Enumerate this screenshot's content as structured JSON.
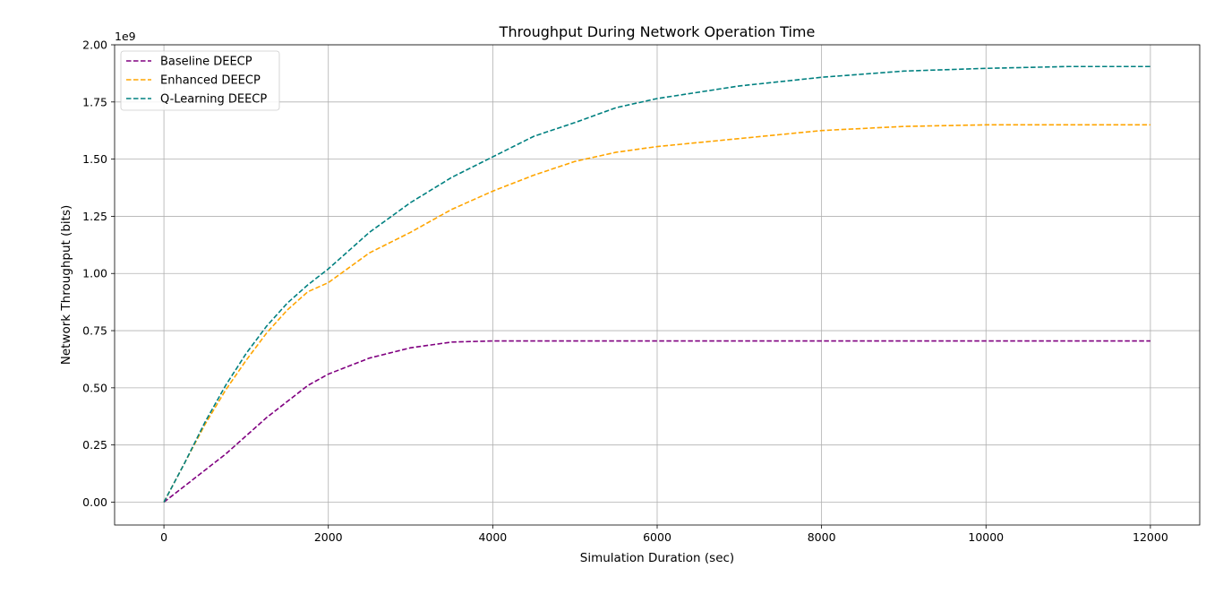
{
  "chart_data": {
    "type": "line",
    "title": "Throughput During Network Operation Time",
    "xlabel": "Simulation Duration (sec)",
    "ylabel": "Network Throughput (bits)",
    "y_offset_label": "1e9",
    "xlim": [
      -600,
      12600
    ],
    "ylim": [
      -0.1,
      2.0
    ],
    "xticks": [
      0,
      2000,
      4000,
      6000,
      8000,
      10000,
      12000
    ],
    "xtick_labels": [
      "0",
      "2000",
      "4000",
      "6000",
      "8000",
      "10000",
      "12000"
    ],
    "yticks": [
      0.0,
      0.25,
      0.5,
      0.75,
      1.0,
      1.25,
      1.5,
      1.75,
      2.0
    ],
    "ytick_labels": [
      "0.00",
      "0.25",
      "0.50",
      "0.75",
      "1.00",
      "1.25",
      "1.50",
      "1.75",
      "2.00"
    ],
    "grid": true,
    "legend_position": "top-left",
    "x": [
      0,
      250,
      500,
      750,
      1000,
      1250,
      1500,
      1750,
      2000,
      2500,
      3000,
      3500,
      4000,
      4500,
      5000,
      5500,
      6000,
      7000,
      8000,
      9000,
      10000,
      11000,
      12000
    ],
    "series": [
      {
        "name": "Baseline DEECP",
        "color": "#800080",
        "style": "dashed",
        "values": [
          0.0,
          0.07,
          0.14,
          0.21,
          0.29,
          0.37,
          0.44,
          0.51,
          0.56,
          0.63,
          0.675,
          0.7,
          0.705,
          0.705,
          0.705,
          0.705,
          0.705,
          0.705,
          0.705,
          0.705,
          0.705,
          0.705,
          0.705
        ]
      },
      {
        "name": "Enhanced DEECP",
        "color": "#ffa500",
        "style": "dashed",
        "values": [
          0.0,
          0.17,
          0.34,
          0.49,
          0.62,
          0.74,
          0.84,
          0.92,
          0.96,
          1.09,
          1.18,
          1.28,
          1.36,
          1.43,
          1.49,
          1.53,
          1.555,
          1.59,
          1.625,
          1.643,
          1.65,
          1.65,
          1.65
        ]
      },
      {
        "name": "Q-Learning DEECP",
        "color": "#008080",
        "style": "dashed",
        "values": [
          0.0,
          0.17,
          0.35,
          0.51,
          0.65,
          0.77,
          0.87,
          0.95,
          1.02,
          1.18,
          1.31,
          1.42,
          1.51,
          1.6,
          1.66,
          1.725,
          1.765,
          1.82,
          1.858,
          1.885,
          1.897,
          1.905,
          1.905
        ]
      }
    ]
  }
}
